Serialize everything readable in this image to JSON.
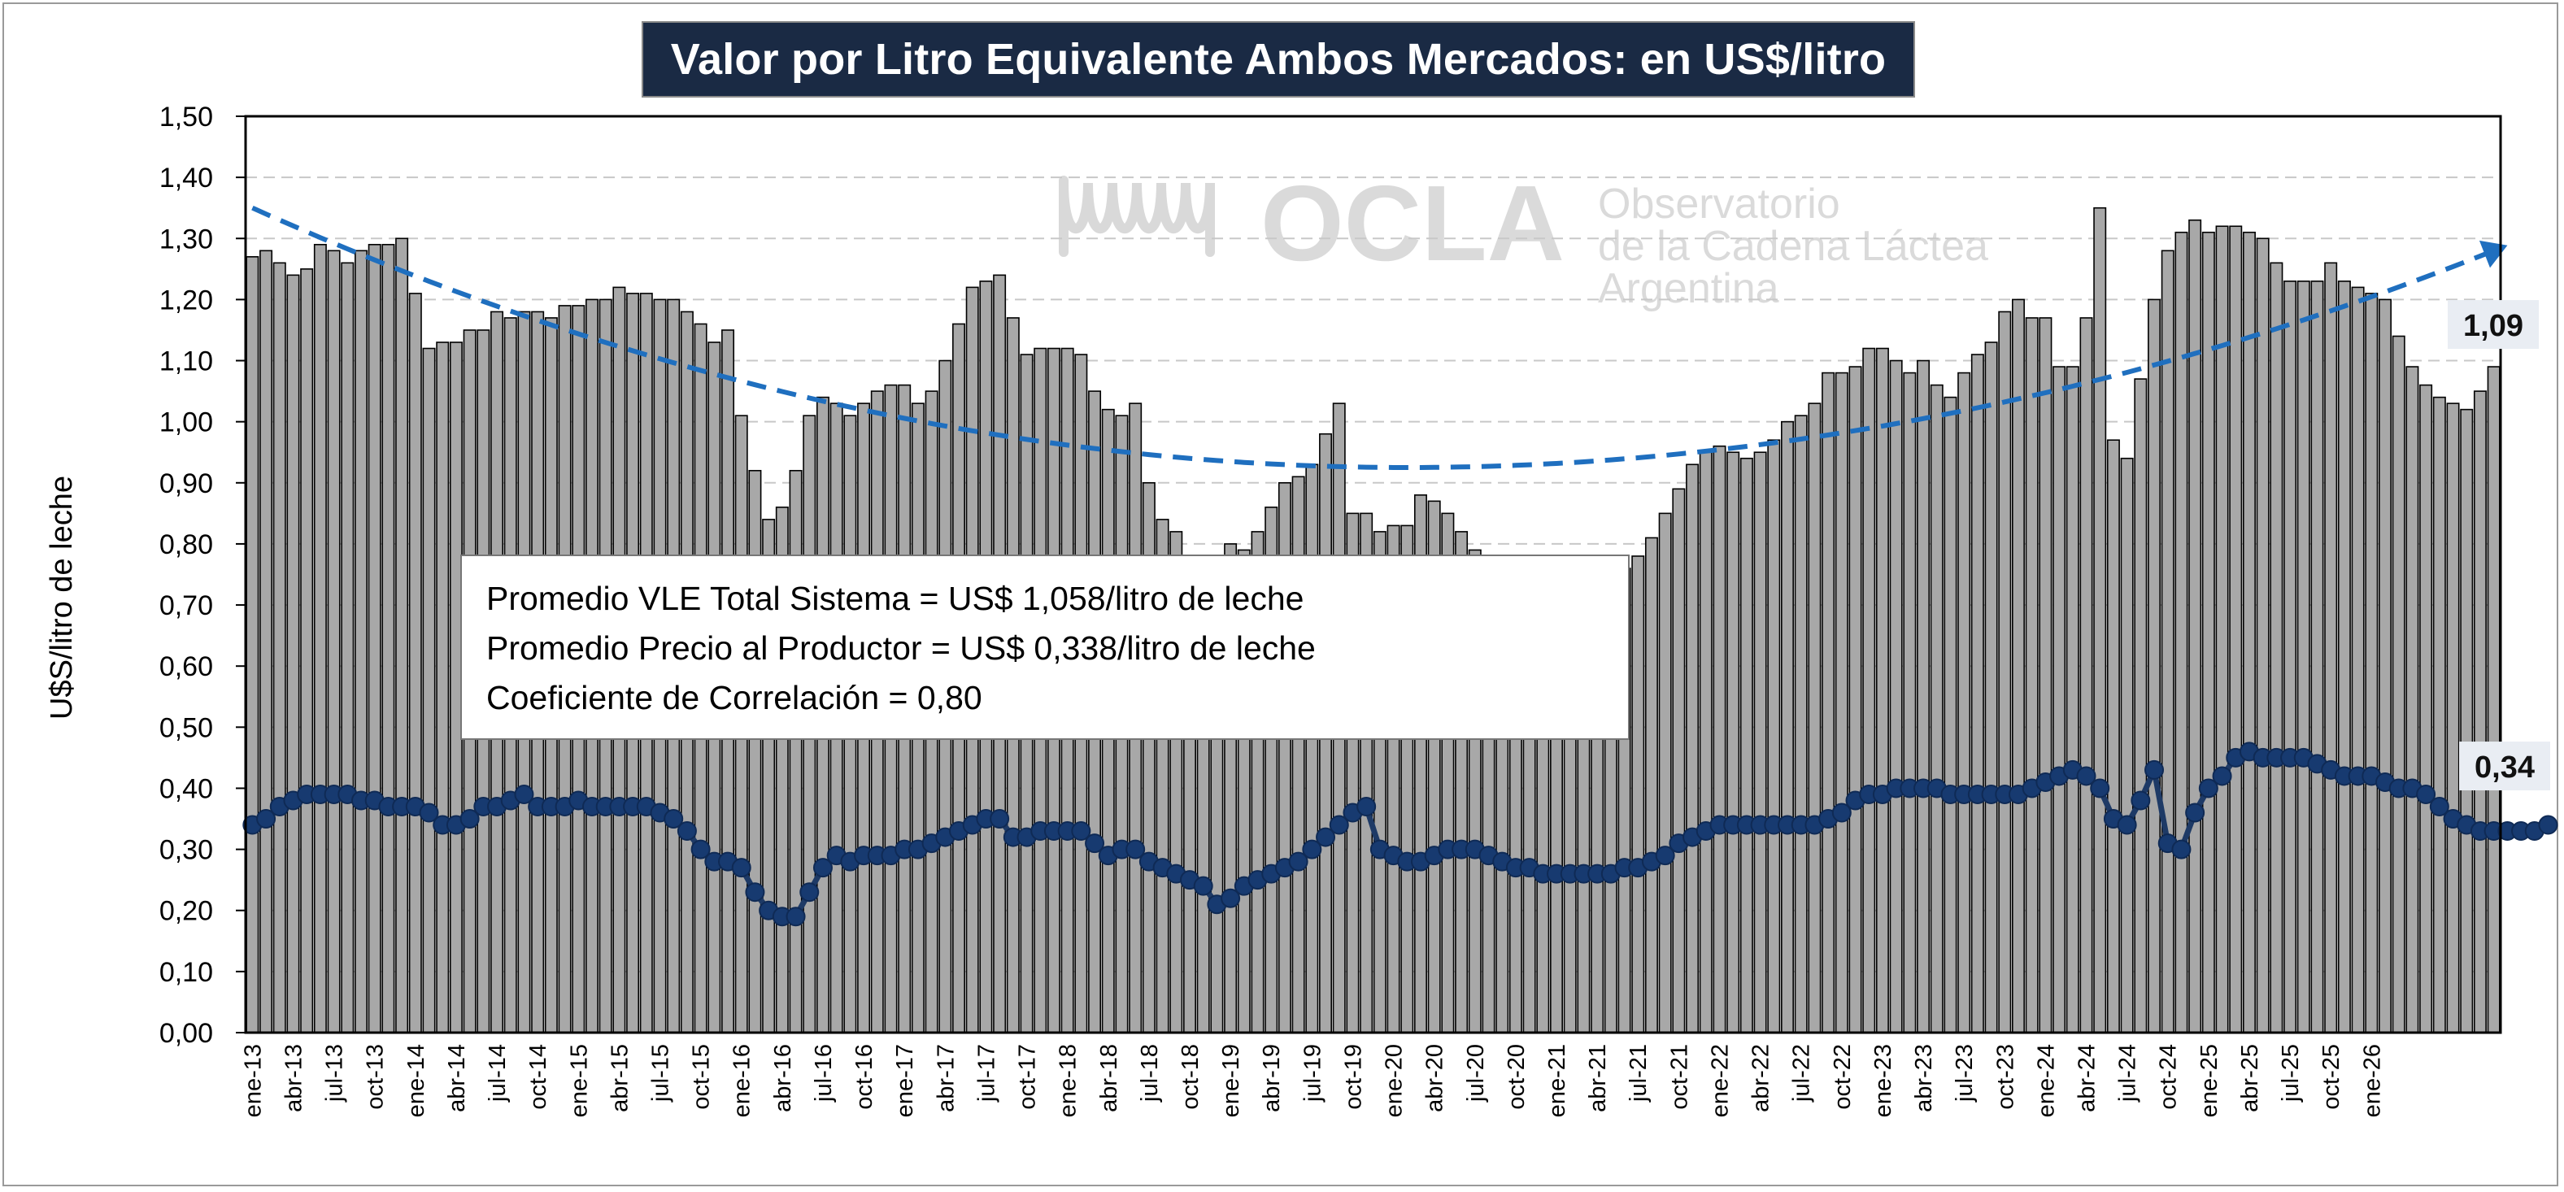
{
  "chart_data": {
    "type": "bar",
    "title": "Valor por Litro Equivalente Ambos Mercados: en US$/litro",
    "ylabel": "U$S/litro de leche",
    "ylim": [
      0,
      1.5
    ],
    "yticks": [
      "0,00",
      "0,10",
      "0,20",
      "0,30",
      "0,40",
      "0,50",
      "0,60",
      "0,70",
      "0,80",
      "0,90",
      "1,00",
      "1,10",
      "1,20",
      "1,30",
      "1,40",
      "1,50"
    ],
    "x_tick_labels": [
      "ene-13",
      "abr-13",
      "jul-13",
      "oct-13",
      "ene-14",
      "abr-14",
      "jul-14",
      "oct-14",
      "ene-15",
      "abr-15",
      "jul-15",
      "oct-15",
      "ene-16",
      "abr-16",
      "jul-16",
      "oct-16",
      "ene-17",
      "abr-17",
      "jul-17",
      "oct-17",
      "ene-18",
      "abr-18",
      "jul-18",
      "oct-18",
      "ene-19",
      "abr-19",
      "jul-19",
      "oct-19",
      "ene-20",
      "abr-20",
      "jul-20",
      "oct-20",
      "ene-21",
      "abr-21",
      "jul-21",
      "oct-21",
      "ene-22",
      "abr-22",
      "jul-22",
      "oct-22",
      "ene-23",
      "abr-23",
      "jul-23",
      "oct-23",
      "ene-24",
      "abr-24",
      "jul-24",
      "oct-24",
      "ene-25",
      "abr-25",
      "jul-25",
      "oct-25",
      "ene-26"
    ],
    "grid": true,
    "series": [
      {
        "kind": "bar",
        "values": [
          1.27,
          1.28,
          1.26,
          1.24,
          1.25,
          1.29,
          1.28,
          1.26,
          1.28,
          1.29,
          1.29,
          1.3,
          1.21,
          1.12,
          1.13,
          1.13,
          1.15,
          1.15,
          1.18,
          1.17,
          1.18,
          1.18,
          1.17,
          1.19,
          1.19,
          1.2,
          1.2,
          1.22,
          1.21,
          1.21,
          1.2,
          1.2,
          1.18,
          1.16,
          1.13,
          1.15,
          1.01,
          0.92,
          0.84,
          0.86,
          0.92,
          1.01,
          1.04,
          1.03,
          1.01,
          1.03,
          1.05,
          1.06,
          1.06,
          1.03,
          1.05,
          1.1,
          1.16,
          1.22,
          1.23,
          1.24,
          1.17,
          1.11,
          1.12,
          1.12,
          1.12,
          1.11,
          1.05,
          1.02,
          1.01,
          1.03,
          0.9,
          0.84,
          0.82,
          0.76,
          0.75,
          0.76,
          0.8,
          0.79,
          0.82,
          0.86,
          0.9,
          0.91,
          0.93,
          0.98,
          1.03,
          0.85,
          0.85,
          0.82,
          0.83,
          0.83,
          0.88,
          0.87,
          0.85,
          0.82,
          0.79,
          0.76,
          0.74,
          0.72,
          0.71,
          0.7,
          0.71,
          0.72,
          0.73,
          0.74,
          0.75,
          0.76,
          0.78,
          0.81,
          0.85,
          0.89,
          0.93,
          0.95,
          0.96,
          0.95,
          0.94,
          0.95,
          0.97,
          1.0,
          1.01,
          1.03,
          1.08,
          1.08,
          1.09,
          1.12,
          1.12,
          1.1,
          1.08,
          1.1,
          1.06,
          1.04,
          1.08,
          1.11,
          1.13,
          1.18,
          1.2,
          1.17,
          1.17,
          1.09,
          1.09,
          1.17,
          1.35,
          0.97,
          0.94,
          1.07,
          1.2,
          1.28,
          1.31,
          1.33,
          1.31,
          1.32,
          1.32,
          1.31,
          1.3,
          1.26,
          1.23,
          1.23,
          1.23,
          1.26,
          1.23,
          1.22,
          1.21,
          1.2,
          1.14,
          1.09,
          1.06,
          1.04,
          1.03,
          1.02,
          1.05,
          1.09
        ]
      },
      {
        "kind": "line",
        "values": [
          0.34,
          0.35,
          0.37,
          0.38,
          0.39,
          0.39,
          0.39,
          0.39,
          0.38,
          0.38,
          0.37,
          0.37,
          0.37,
          0.36,
          0.34,
          0.34,
          0.35,
          0.37,
          0.37,
          0.38,
          0.39,
          0.37,
          0.37,
          0.37,
          0.38,
          0.37,
          0.37,
          0.37,
          0.37,
          0.37,
          0.36,
          0.35,
          0.33,
          0.3,
          0.28,
          0.28,
          0.27,
          0.23,
          0.2,
          0.19,
          0.19,
          0.23,
          0.27,
          0.29,
          0.28,
          0.29,
          0.29,
          0.29,
          0.3,
          0.3,
          0.31,
          0.32,
          0.33,
          0.34,
          0.35,
          0.35,
          0.32,
          0.32,
          0.33,
          0.33,
          0.33,
          0.33,
          0.31,
          0.29,
          0.3,
          0.3,
          0.28,
          0.27,
          0.26,
          0.25,
          0.24,
          0.21,
          0.22,
          0.24,
          0.25,
          0.26,
          0.27,
          0.28,
          0.3,
          0.32,
          0.34,
          0.36,
          0.37,
          0.3,
          0.29,
          0.28,
          0.28,
          0.29,
          0.3,
          0.3,
          0.3,
          0.29,
          0.28,
          0.27,
          0.27,
          0.26,
          0.26,
          0.26,
          0.26,
          0.26,
          0.26,
          0.27,
          0.27,
          0.28,
          0.29,
          0.31,
          0.32,
          0.33,
          0.34,
          0.34,
          0.34,
          0.34,
          0.34,
          0.34,
          0.34,
          0.34,
          0.35,
          0.36,
          0.38,
          0.39,
          0.39,
          0.4,
          0.4,
          0.4,
          0.4,
          0.39,
          0.39,
          0.39,
          0.39,
          0.39,
          0.39,
          0.4,
          0.41,
          0.42,
          0.43,
          0.42,
          0.4,
          0.35,
          0.34,
          0.38,
          0.43,
          0.31,
          0.3,
          0.36,
          0.4,
          0.42,
          0.45,
          0.46,
          0.45,
          0.45,
          0.45,
          0.45,
          0.44,
          0.43,
          0.42,
          0.42,
          0.42,
          0.41,
          0.4,
          0.4,
          0.39,
          0.37,
          0.35,
          0.34,
          0.33,
          0.33,
          0.33,
          0.33,
          0.33,
          0.34
        ]
      },
      {
        "kind": "trendline",
        "style": "dashed",
        "start": 1.35,
        "min_value": 0.925,
        "min_index": 85,
        "end": 1.28
      }
    ],
    "end_labels": {
      "bar": "1,09",
      "line": "0,34"
    },
    "colors": {
      "bar": "#a8a8a8",
      "bar_edge": "#000000",
      "line": "#1e3a66",
      "marker": "#173a70",
      "trend": "#1f6fbf"
    }
  },
  "annotation": {
    "lines": [
      "Promedio VLE Total Sistema = US$ 1,058/litro de leche",
      "Promedio Precio al Productor = US$ 0,338/litro de leche",
      "Coeficiente de Correlación = 0,80"
    ]
  },
  "watermark": {
    "main": "OCLA",
    "line1": "Observatorio",
    "line2": "de la Cadena Láctea",
    "line3": "Argentina"
  }
}
